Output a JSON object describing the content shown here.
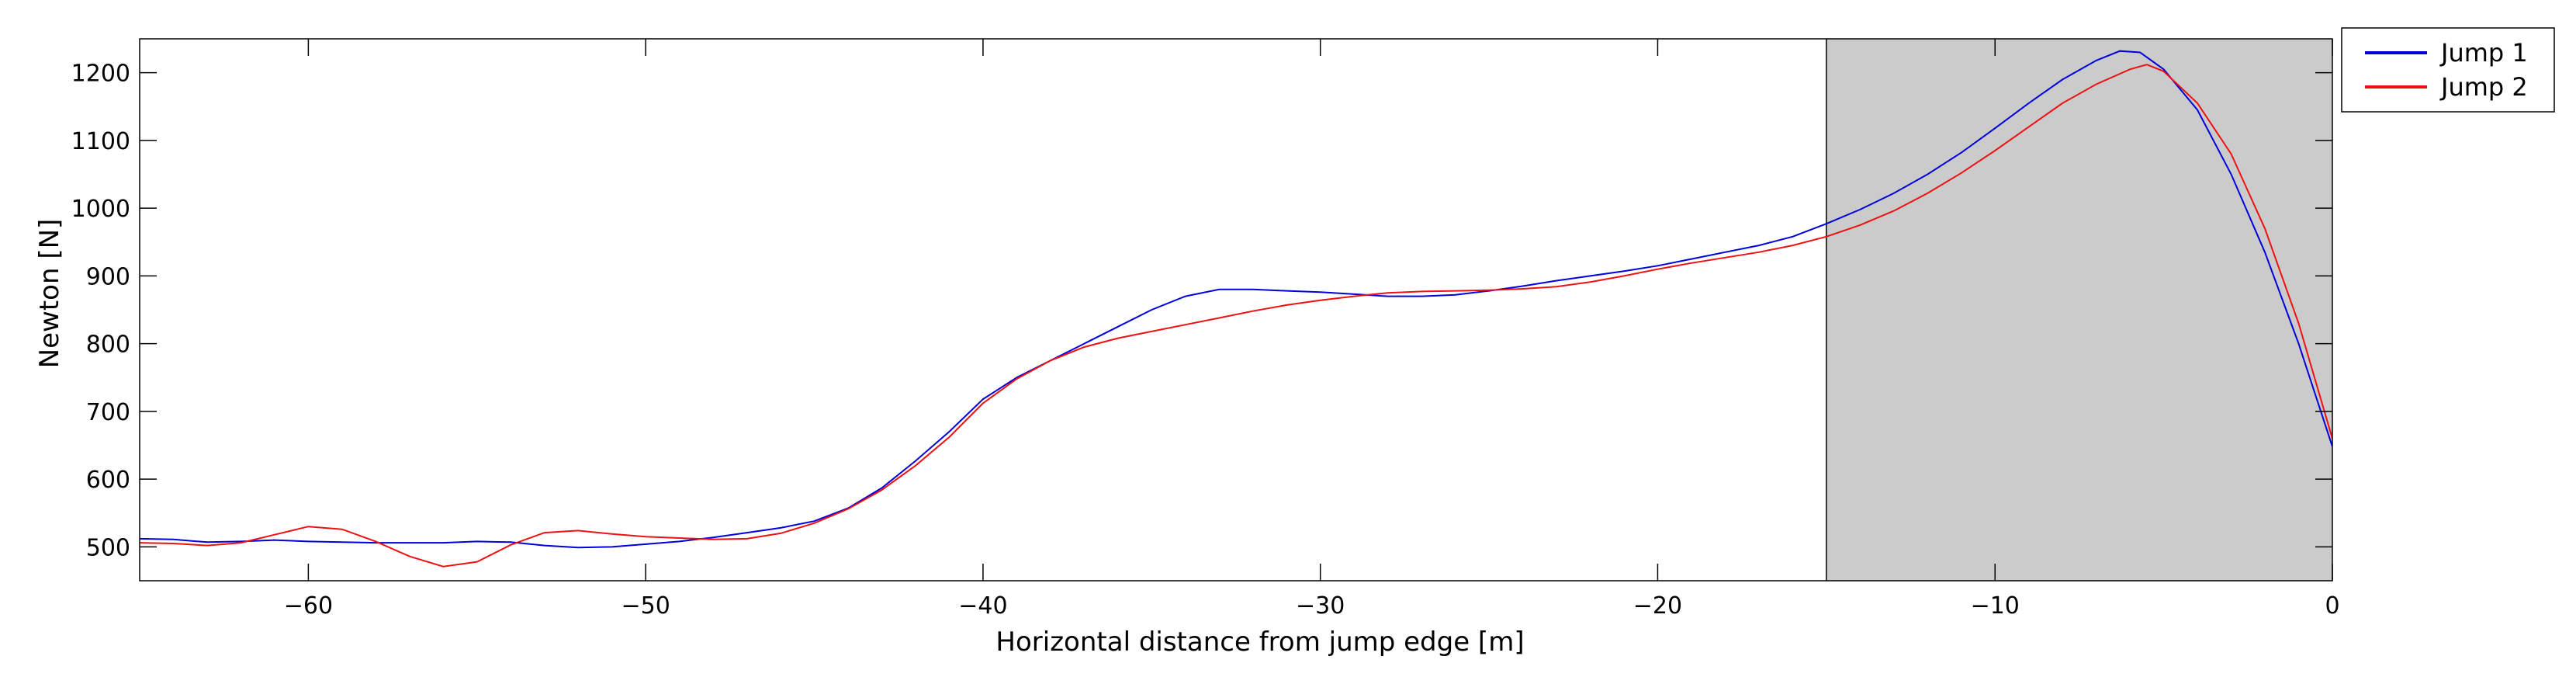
{
  "chart_data": {
    "type": "line",
    "title": "",
    "xlabel": "Horizontal distance from jump edge [m]",
    "ylabel": "Newton [N]",
    "xlim": [
      -65,
      0
    ],
    "ylim": [
      450,
      1250
    ],
    "x_ticks": [
      -60,
      -50,
      -40,
      -30,
      -20,
      -10,
      0
    ],
    "y_ticks": [
      500,
      600,
      700,
      800,
      900,
      1000,
      1100,
      1200
    ],
    "x_tick_labels": [
      "−60",
      "−50",
      "−40",
      "−30",
      "−20",
      "−10",
      "0"
    ],
    "y_tick_labels": [
      "500",
      "600",
      "700",
      "800",
      "900",
      "1000",
      "1100",
      "1200"
    ],
    "grid": false,
    "legend_position": "outside-top-right",
    "shaded_region": {
      "x": [
        -15,
        0
      ],
      "color": "#cbcbcb"
    },
    "series": [
      {
        "name": "Jump 1",
        "color": "#0000dd",
        "x": [
          -65,
          -64,
          -63,
          -62,
          -61,
          -60,
          -59,
          -58,
          -57,
          -56,
          -55,
          -54,
          -53,
          -52,
          -51,
          -50,
          -49,
          -48,
          -47,
          -46,
          -45,
          -44,
          -43,
          -42,
          -41,
          -40,
          -39,
          -38,
          -37,
          -36,
          -35,
          -34,
          -33,
          -32,
          -31,
          -30,
          -29,
          -28,
          -27,
          -26,
          -25,
          -24,
          -23,
          -22,
          -21,
          -20,
          -19,
          -18,
          -17,
          -16,
          -15,
          -14,
          -13,
          -12,
          -11,
          -10,
          -9,
          -8,
          -7,
          -6.3,
          -5.7,
          -5,
          -4,
          -3,
          -2,
          -1,
          0
        ],
        "y": [
          512,
          511,
          507,
          508,
          510,
          508,
          507,
          506,
          506,
          506,
          508,
          507,
          502,
          499,
          500,
          504,
          508,
          514,
          521,
          528,
          538,
          557,
          587,
          627,
          670,
          718,
          750,
          775,
          800,
          825,
          850,
          870,
          880,
          880,
          878,
          876,
          873,
          870,
          870,
          872,
          878,
          885,
          893,
          900,
          907,
          915,
          925,
          935,
          945,
          958,
          977,
          998,
          1022,
          1050,
          1082,
          1118,
          1155,
          1190,
          1218,
          1232,
          1230,
          1205,
          1145,
          1050,
          935,
          800,
          648
        ]
      },
      {
        "name": "Jump 2",
        "color": "#ee1111",
        "x": [
          -65,
          -64,
          -63,
          -62,
          -61,
          -60,
          -59,
          -58,
          -57,
          -56,
          -55,
          -54,
          -53,
          -52,
          -51,
          -50,
          -49,
          -48,
          -47,
          -46,
          -45,
          -44,
          -43,
          -42,
          -41,
          -40,
          -39,
          -38,
          -37,
          -36,
          -35,
          -34,
          -33,
          -32,
          -31,
          -30,
          -29,
          -28,
          -27,
          -26,
          -25,
          -24,
          -23,
          -22,
          -21,
          -20,
          -19,
          -18,
          -17,
          -16,
          -15,
          -14,
          -13,
          -12,
          -11,
          -10,
          -9,
          -8,
          -7,
          -6,
          -5.5,
          -5,
          -4,
          -3,
          -2,
          -1,
          0
        ],
        "y": [
          506,
          505,
          502,
          506,
          518,
          530,
          526,
          508,
          486,
          471,
          478,
          503,
          521,
          524,
          519,
          515,
          513,
          511,
          512,
          520,
          535,
          556,
          584,
          620,
          662,
          712,
          748,
          775,
          795,
          808,
          818,
          828,
          838,
          848,
          857,
          864,
          870,
          875,
          877,
          878,
          879,
          881,
          884,
          891,
          900,
          910,
          919,
          927,
          935,
          945,
          958,
          975,
          996,
          1022,
          1052,
          1085,
          1120,
          1155,
          1183,
          1205,
          1212,
          1202,
          1155,
          1080,
          970,
          830,
          660
        ]
      }
    ]
  }
}
